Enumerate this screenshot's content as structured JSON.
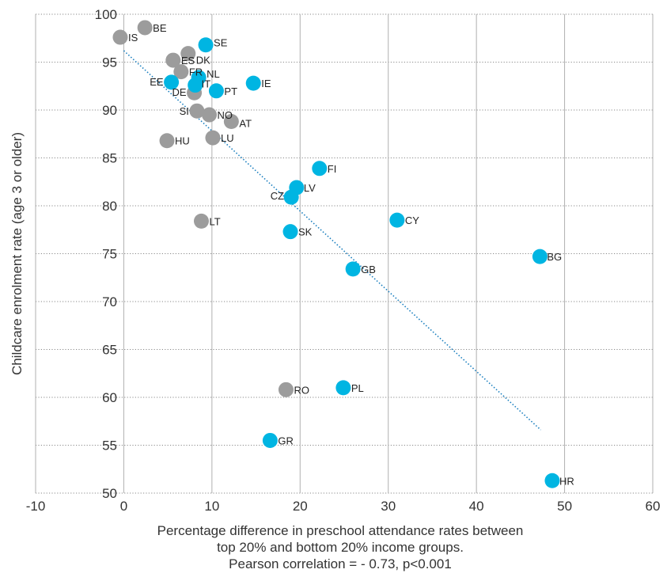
{
  "chart_data": {
    "type": "scatter",
    "title": "",
    "xlabel_lines": [
      "Percentage difference in preschool attendance rates between",
      "top 20% and bottom 20% income groups.",
      "Pearson correlation = - 0.73, p<0.001"
    ],
    "ylabel": "Childcare enrolment rate (age 3 or older)",
    "xlim": [
      -10,
      60
    ],
    "ylim": [
      50,
      100
    ],
    "x_ticks": [
      -10,
      0,
      10,
      20,
      30,
      40,
      50,
      60
    ],
    "y_ticks": [
      50,
      55,
      60,
      65,
      70,
      75,
      80,
      85,
      90,
      95,
      100
    ],
    "grid": "dotted",
    "colors": {
      "series_a": "#00b5e2",
      "series_b": "#9c9c9c",
      "trendline": "#1a7fbf"
    },
    "trendline": {
      "x": [
        0,
        47.3
      ],
      "y": [
        96.2,
        56.6
      ],
      "style": "dotted"
    },
    "series": [
      {
        "color": "#9c9c9c",
        "points": [
          {
            "label": "IS",
            "x": -0.4,
            "y": 97.6
          },
          {
            "label": "BE",
            "x": 2.4,
            "y": 98.6
          },
          {
            "label": "DK",
            "x": 7.3,
            "y": 95.9
          },
          {
            "label": "ES",
            "x": 5.6,
            "y": 95.2
          },
          {
            "label": "FR",
            "x": 6.5,
            "y": 94.0
          },
          {
            "label": "DE",
            "x": 8.0,
            "y": 91.8
          },
          {
            "label": "SI",
            "x": 8.3,
            "y": 89.9
          },
          {
            "label": "NO",
            "x": 9.7,
            "y": 89.5
          },
          {
            "label": "AT",
            "x": 12.2,
            "y": 88.8
          },
          {
            "label": "HU",
            "x": 4.9,
            "y": 86.8
          },
          {
            "label": "LU",
            "x": 10.1,
            "y": 87.1
          },
          {
            "label": "LT",
            "x": 8.8,
            "y": 78.4
          },
          {
            "label": "RO",
            "x": 18.4,
            "y": 60.8
          }
        ]
      },
      {
        "color": "#00b5e2",
        "points": [
          {
            "label": "SE",
            "x": 9.3,
            "y": 96.8
          },
          {
            "label": "NL",
            "x": 8.5,
            "y": 93.4
          },
          {
            "label": "IT",
            "x": 8.1,
            "y": 92.6
          },
          {
            "label": "EE",
            "x": 5.4,
            "y": 92.9
          },
          {
            "label": "PT",
            "x": 10.5,
            "y": 92.0
          },
          {
            "label": "IE",
            "x": 14.7,
            "y": 92.8
          },
          {
            "label": "FI",
            "x": 22.2,
            "y": 83.9
          },
          {
            "label": "LV",
            "x": 19.6,
            "y": 81.9
          },
          {
            "label": "CZ",
            "x": 19.0,
            "y": 80.9
          },
          {
            "label": "CY",
            "x": 31.0,
            "y": 78.5
          },
          {
            "label": "SK",
            "x": 18.9,
            "y": 77.3
          },
          {
            "label": "BG",
            "x": 47.2,
            "y": 74.7
          },
          {
            "label": "GB",
            "x": 26.0,
            "y": 73.4
          },
          {
            "label": "PL",
            "x": 24.9,
            "y": 61.0
          },
          {
            "label": "GR",
            "x": 16.6,
            "y": 55.5
          },
          {
            "label": "HR",
            "x": 48.6,
            "y": 51.3
          }
        ]
      }
    ]
  }
}
